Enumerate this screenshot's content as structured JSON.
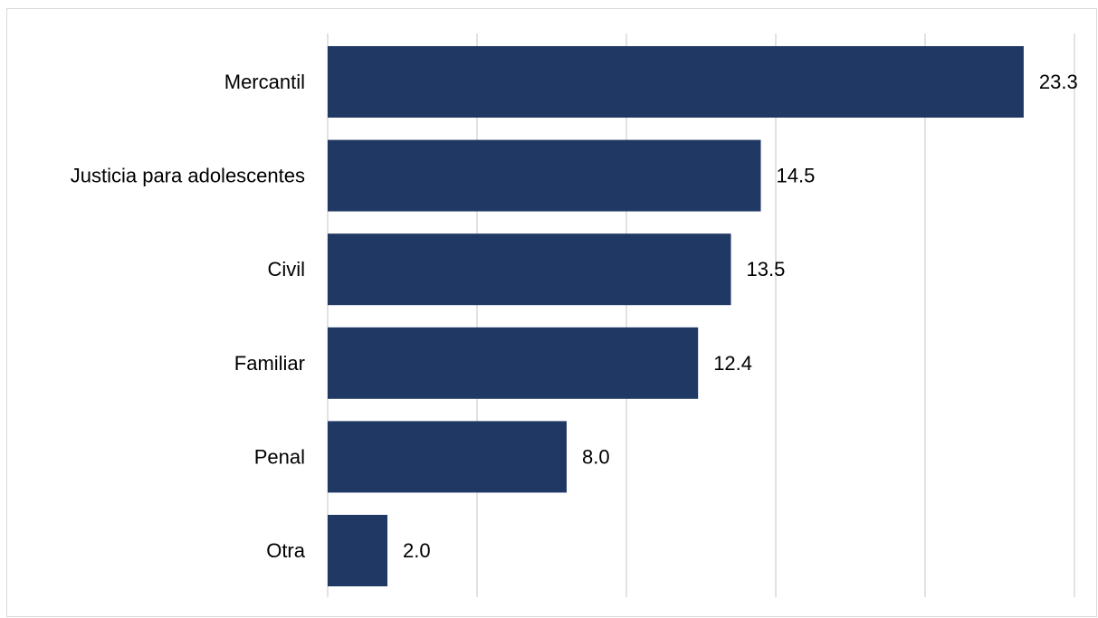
{
  "chart_data": {
    "type": "bar",
    "orientation": "horizontal",
    "categories": [
      "Mercantil",
      "Justicia para adolescentes",
      "Civil",
      "Familiar",
      "Penal",
      "Otra"
    ],
    "values": [
      23.3,
      14.5,
      13.5,
      12.4,
      8.0,
      2.0
    ],
    "value_labels": [
      "23.3",
      "14.5",
      "13.5",
      "12.4",
      "8.0",
      "2.0"
    ],
    "xlim": [
      0,
      25
    ],
    "x_gridlines": [
      0,
      5,
      10,
      15,
      20,
      25
    ],
    "grid": true,
    "legend": "none",
    "title": "",
    "xlabel": "",
    "ylabel": ""
  },
  "colors": {
    "bar": "#203864",
    "grid": "#d9d9d9"
  }
}
